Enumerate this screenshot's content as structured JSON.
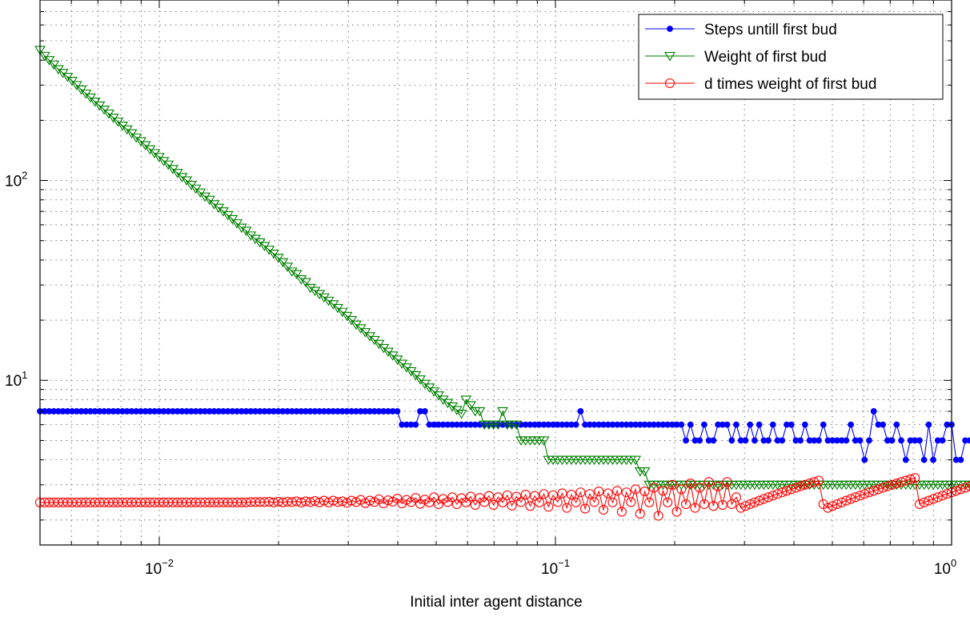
{
  "chart_data": {
    "type": "line",
    "xlabel": "Initial inter agent distance",
    "ylabel": "",
    "title": "",
    "xscale": "log",
    "yscale": "log",
    "xlim": [
      0.005,
      1
    ],
    "ylim": [
      1.5,
      800
    ],
    "grid": true,
    "legend_position": "top-right",
    "x_ticks": [
      {
        "value": 0.01,
        "base": "10",
        "exp": "−2"
      },
      {
        "value": 0.1,
        "base": "10",
        "exp": "−1"
      },
      {
        "value": 1,
        "base": "10",
        "exp": "0"
      }
    ],
    "y_ticks": [
      {
        "value": 10,
        "base": "10",
        "exp": "1"
      },
      {
        "value": 100,
        "base": "10",
        "exp": "2"
      }
    ],
    "n_points": 200,
    "series": [
      {
        "name": "Steps untill first bud",
        "color": "#0000ff",
        "marker": "dot",
        "values": [
          7,
          7,
          7,
          7,
          7,
          7,
          7,
          7,
          7,
          7,
          7,
          7,
          7,
          7,
          7,
          7,
          7,
          7,
          7,
          7,
          7,
          7,
          7,
          7,
          7,
          7,
          7,
          7,
          7,
          7,
          7,
          7,
          7,
          7,
          7,
          7,
          7,
          7,
          7,
          7,
          7,
          7,
          7,
          7,
          7,
          7,
          7,
          7,
          7,
          7,
          7,
          7,
          7,
          7,
          7,
          7,
          7,
          7,
          7,
          7,
          7,
          7,
          7,
          7,
          7,
          7,
          7,
          7,
          7,
          7,
          7,
          7,
          7,
          7,
          7,
          7,
          7,
          7,
          7,
          6,
          6,
          6,
          6,
          7,
          7,
          6,
          6,
          6,
          6,
          6,
          6,
          6,
          6,
          6,
          6,
          6,
          6,
          6,
          6,
          6,
          6,
          6,
          6,
          6,
          6,
          6,
          6,
          6,
          6,
          6,
          6,
          6,
          6,
          6,
          6,
          6,
          6,
          6,
          7,
          6,
          6,
          6,
          6,
          6,
          6,
          6,
          6,
          6,
          6,
          6,
          6,
          6,
          6,
          6,
          6,
          6,
          6,
          6,
          6,
          6,
          6,
          5,
          6,
          5,
          5,
          6,
          5,
          5,
          6,
          6,
          6,
          5,
          6,
          5,
          5,
          6,
          5,
          6,
          5,
          5,
          6,
          5,
          5,
          6,
          6,
          5,
          5,
          6,
          5,
          5,
          5,
          6,
          5,
          5,
          5,
          5,
          5,
          6,
          5,
          5,
          4,
          5,
          7,
          6,
          6,
          5,
          5,
          6,
          5,
          4,
          5,
          5,
          5,
          4,
          6,
          4,
          5,
          5,
          6,
          6,
          4,
          4,
          5,
          5,
          5,
          6,
          5,
          5,
          5,
          6,
          5,
          5,
          5,
          5
        ]
      },
      {
        "name": "Weight of first bud",
        "color": "#008000",
        "marker": "triangle-down",
        "values": [
          450,
          420,
          400,
          380,
          360,
          345,
          330,
          315,
          300,
          285,
          272,
          260,
          248,
          237,
          226,
          216,
          206,
          197,
          188,
          180,
          172,
          164,
          157,
          150,
          143,
          137,
          131,
          125,
          120,
          114,
          109,
          104,
          100,
          95,
          91,
          87,
          83,
          80,
          76,
          73,
          70,
          67,
          64,
          61,
          58,
          56,
          53,
          51,
          49,
          47,
          45,
          43,
          41,
          39,
          37,
          35,
          34,
          32,
          31,
          29,
          28,
          27,
          26,
          25,
          24,
          23,
          22,
          21,
          20,
          19,
          18.2,
          17.4,
          16.6,
          15.9,
          15.2,
          14.5,
          13.9,
          13.3,
          12.7,
          12.1,
          11.6,
          11.1,
          10.6,
          10.1,
          9.6,
          9.2,
          8.8,
          8.4,
          8,
          7.7,
          7.4,
          7.1,
          6.8,
          8,
          7.5,
          7,
          7,
          6,
          6,
          6,
          6,
          7,
          6,
          6,
          6,
          5,
          5,
          5,
          5,
          5,
          5,
          4,
          4,
          4,
          4,
          4,
          4,
          4,
          4,
          4,
          4,
          4,
          4,
          4,
          4,
          4,
          4,
          4,
          4,
          4,
          4,
          3.5,
          3.5,
          3,
          3,
          3,
          3,
          3,
          3,
          3,
          3,
          3,
          3,
          3,
          3,
          3,
          3,
          3,
          3,
          3,
          3,
          3,
          3,
          3,
          3,
          3,
          3,
          3,
          3,
          3,
          3,
          3,
          3,
          3,
          3,
          3,
          3,
          3,
          3,
          3,
          3,
          3,
          3,
          3,
          3,
          3,
          3,
          3,
          3,
          3,
          3,
          3,
          3,
          3,
          3,
          3,
          3,
          3,
          3,
          3,
          3,
          3,
          3,
          3,
          3,
          3,
          3,
          3,
          3,
          3,
          3,
          3,
          3,
          3,
          3,
          3,
          3,
          3,
          3,
          3,
          3,
          3,
          3,
          3,
          3
        ]
      },
      {
        "name": "d times weight of first bud",
        "color": "#ff0000",
        "marker": "circle",
        "values": [
          2.45,
          2.45,
          2.45,
          2.45,
          2.45,
          2.45,
          2.45,
          2.45,
          2.45,
          2.45,
          2.45,
          2.45,
          2.45,
          2.45,
          2.45,
          2.45,
          2.45,
          2.45,
          2.45,
          2.45,
          2.45,
          2.45,
          2.45,
          2.45,
          2.45,
          2.45,
          2.45,
          2.45,
          2.45,
          2.45,
          2.45,
          2.45,
          2.45,
          2.45,
          2.45,
          2.45,
          2.45,
          2.45,
          2.45,
          2.45,
          2.45,
          2.45,
          2.45,
          2.45,
          2.45,
          2.45,
          2.46,
          2.46,
          2.46,
          2.46,
          2.47,
          2.45,
          2.47,
          2.45,
          2.47,
          2.46,
          2.48,
          2.45,
          2.48,
          2.46,
          2.49,
          2.45,
          2.5,
          2.45,
          2.5,
          2.46,
          2.48,
          2.44,
          2.5,
          2.46,
          2.52,
          2.43,
          2.5,
          2.46,
          2.54,
          2.42,
          2.51,
          2.47,
          2.56,
          2.42,
          2.52,
          2.46,
          2.58,
          2.41,
          2.53,
          2.45,
          2.6,
          2.4,
          2.55,
          2.46,
          2.6,
          2.4,
          2.57,
          2.45,
          2.62,
          2.38,
          2.58,
          2.46,
          2.64,
          2.38,
          2.6,
          2.45,
          2.66,
          2.36,
          2.62,
          2.46,
          2.68,
          2.35,
          2.64,
          2.45,
          2.7,
          2.33,
          2.66,
          2.46,
          2.72,
          2.3,
          2.68,
          2.45,
          2.75,
          2.28,
          2.7,
          2.46,
          2.78,
          2.25,
          2.72,
          2.45,
          2.8,
          2.2,
          2.75,
          2.46,
          2.85,
          2.15,
          2.78,
          2.45,
          2.9,
          2.1,
          2.8,
          2.45,
          3,
          2.2,
          2.85,
          2.4,
          3.05,
          2.3,
          2.9,
          2.4,
          3.1,
          2.35,
          2.95,
          2.38,
          3.1,
          2.4,
          2.6,
          2.3,
          2.35,
          2.4,
          2.45,
          2.5,
          2.55,
          2.6,
          2.65,
          2.7,
          2.75,
          2.8,
          2.85,
          2.9,
          2.95,
          3,
          3.05,
          3.1,
          3.15,
          2.4,
          2.3,
          2.35,
          2.4,
          2.45,
          2.5,
          2.55,
          2.6,
          2.65,
          2.7,
          2.75,
          2.8,
          2.85,
          2.9,
          2.95,
          3,
          3.05,
          3.1,
          3.15,
          3.2,
          3.25,
          2.4,
          2.45,
          2.5,
          2.55,
          2.6,
          2.65,
          2.7,
          2.75,
          2.8,
          2.85,
          2.9,
          2.95,
          3,
          3.05,
          3.1,
          3.15,
          3.2
        ]
      }
    ]
  }
}
